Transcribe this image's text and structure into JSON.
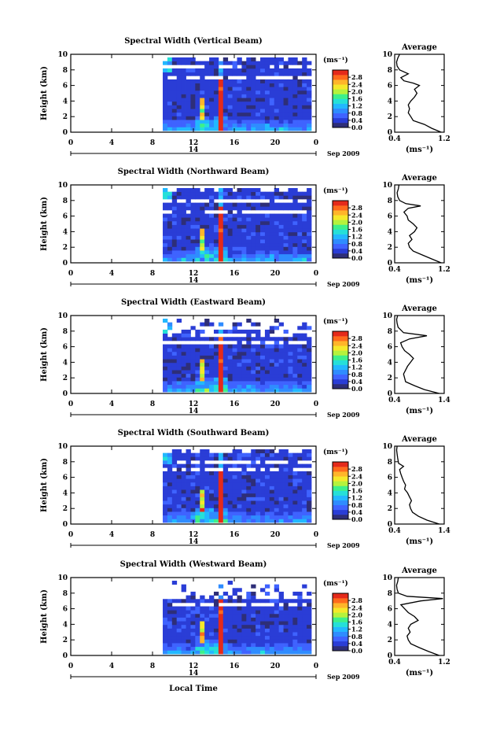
{
  "figure": {
    "xlabel": "Local Time",
    "date_label": "Sep 2009",
    "day_label": "14"
  },
  "colors": {
    "scale": [
      "#2e2e78",
      "#2a3dd6",
      "#3f63ff",
      "#2f8cff",
      "#22b8ff",
      "#25e0d8",
      "#3ef08a",
      "#b5f23c",
      "#f5e82a",
      "#ffb52a",
      "#ff6a1c",
      "#e52a1a"
    ],
    "missing": "#ffffff",
    "profile_line": "#000000"
  },
  "chart_data": [
    {
      "type": "heatmap",
      "title": "Spectral Width (Vertical Beam)",
      "ylabel": "Height (km)",
      "xlim": [
        0,
        24
      ],
      "ylim": [
        0,
        10
      ],
      "xticks": [
        "0",
        "4",
        "8",
        "12",
        "16",
        "20",
        "0"
      ],
      "yticks": [
        "0",
        "2",
        "4",
        "6",
        "8",
        "10"
      ],
      "colorbar": {
        "unit": "(ms⁻¹)",
        "ticks": [
          "0.0",
          "0.4",
          "0.8",
          "1.2",
          "1.6",
          "2.0",
          "2.4",
          "2.8"
        ],
        "range": [
          0,
          3.2
        ]
      },
      "data_start_hour": 9.0,
      "gaps": [
        [
          8.0,
          8.6
        ],
        [
          6.8,
          7.3
        ]
      ],
      "profile": {
        "title": "Average",
        "xlabel": "(ms⁻¹)",
        "xticks": [
          "0.4",
          "1.2"
        ],
        "xlim": [
          0.4,
          1.2
        ],
        "ylim": [
          0,
          10
        ],
        "yticks": [
          "0",
          "2",
          "4",
          "6",
          "8",
          "10"
        ],
        "height": [
          0,
          0.5,
          1,
          1.5,
          2,
          2.5,
          3,
          3.5,
          4,
          4.5,
          5,
          5.5,
          6,
          6.3,
          6.6,
          7,
          7.5,
          8,
          8.5,
          9,
          9.5,
          10
        ],
        "width": [
          1.15,
          1.0,
          0.88,
          0.7,
          0.66,
          0.62,
          0.64,
          0.62,
          0.66,
          0.72,
          0.76,
          0.72,
          0.8,
          0.7,
          0.55,
          0.5,
          0.62,
          0.48,
          0.44,
          0.43,
          0.45,
          0.48
        ]
      }
    },
    {
      "type": "heatmap",
      "title": "Spectral Width (Northward Beam)",
      "ylabel": "Height (km)",
      "xlim": [
        0,
        24
      ],
      "ylim": [
        0,
        10
      ],
      "xticks": [
        "0",
        "4",
        "8",
        "12",
        "16",
        "20",
        "0"
      ],
      "yticks": [
        "0",
        "2",
        "4",
        "6",
        "8",
        "10"
      ],
      "colorbar": {
        "unit": "(ms⁻¹)",
        "ticks": [
          "0.0",
          "0.4",
          "0.8",
          "1.2",
          "1.6",
          "2.0",
          "2.4",
          "2.8"
        ],
        "range": [
          0,
          3.2
        ]
      },
      "data_start_hour": 9.0,
      "gaps": [
        [
          7.6,
          8.2
        ],
        [
          6.3,
          6.9
        ]
      ],
      "profile": {
        "title": "Average",
        "xlabel": "(ms⁻¹)",
        "xticks": [
          "0.4",
          "1.2"
        ],
        "xlim": [
          0.4,
          1.2
        ],
        "ylim": [
          0,
          10
        ],
        "yticks": [
          "0",
          "2",
          "4",
          "6",
          "8",
          "10"
        ],
        "height": [
          0,
          0.5,
          1,
          1.5,
          2,
          2.5,
          3,
          3.5,
          4,
          4.5,
          5,
          5.5,
          6,
          6.5,
          7,
          7.3,
          7.6,
          8,
          8.5,
          9,
          9.5,
          10
        ],
        "width": [
          1.15,
          1.0,
          0.85,
          0.7,
          0.64,
          0.62,
          0.68,
          0.64,
          0.72,
          0.76,
          0.7,
          0.62,
          0.6,
          0.55,
          0.62,
          0.82,
          0.58,
          0.48,
          0.45,
          0.44,
          0.46,
          0.47
        ]
      }
    },
    {
      "type": "heatmap",
      "title": "Spectral Width (Eastward Beam)",
      "ylabel": "Height (km)",
      "xlim": [
        0,
        24
      ],
      "ylim": [
        0,
        10
      ],
      "xticks": [
        "0",
        "4",
        "8",
        "12",
        "16",
        "20",
        "0"
      ],
      "yticks": [
        "0",
        "2",
        "4",
        "6",
        "8",
        "10"
      ],
      "colorbar": {
        "unit": "(ms⁻¹)",
        "ticks": [
          "0.0",
          "0.4",
          "0.8",
          "1.2",
          "1.6",
          "2.0",
          "2.4",
          "2.8"
        ],
        "range": [
          0,
          3.2
        ]
      },
      "data_start_hour": 9.0,
      "gaps": [
        [
          7.0,
          10.0
        ],
        [
          6.4,
          6.7
        ]
      ],
      "profile": {
        "title": "Average",
        "xlabel": "(ms⁻¹)",
        "xticks": [
          "0.4",
          "1.4"
        ],
        "xlim": [
          0.4,
          1.4
        ],
        "ylim": [
          0,
          10
        ],
        "yticks": [
          "0",
          "2",
          "4",
          "6",
          "8",
          "10"
        ],
        "height": [
          0,
          0.5,
          1,
          1.5,
          2,
          2.5,
          3,
          3.5,
          4,
          4.5,
          5,
          5.5,
          6,
          6.5,
          7,
          7.4,
          7.8,
          8.5,
          9,
          9.5,
          10
        ],
        "width": [
          1.3,
          1.0,
          0.8,
          0.62,
          0.6,
          0.58,
          0.62,
          0.66,
          0.72,
          0.78,
          0.7,
          0.6,
          0.55,
          0.52,
          0.7,
          1.05,
          0.58,
          0.47,
          0.45,
          0.44,
          0.46
        ]
      }
    },
    {
      "type": "heatmap",
      "title": "Spectral Width (Southward Beam)",
      "ylabel": "Height (km)",
      "xlim": [
        0,
        24
      ],
      "ylim": [
        0,
        10
      ],
      "xticks": [
        "0",
        "4",
        "8",
        "12",
        "16",
        "20",
        "0"
      ],
      "yticks": [
        "0",
        "2",
        "4",
        "6",
        "8",
        "10"
      ],
      "colorbar": {
        "unit": "(ms⁻¹)",
        "ticks": [
          "0.0",
          "0.4",
          "0.8",
          "1.2",
          "1.6",
          "2.0",
          "2.4",
          "2.8"
        ],
        "range": [
          0,
          3.2
        ]
      },
      "data_start_hour": 9.0,
      "gaps": [
        [
          7.6,
          8.3
        ],
        [
          6.5,
          7.0
        ]
      ],
      "profile": {
        "title": "Average",
        "xlabel": "(ms⁻¹)",
        "xticks": [
          "0.4",
          "1.4"
        ],
        "xlim": [
          0.4,
          1.4
        ],
        "ylim": [
          0,
          10
        ],
        "yticks": [
          "0",
          "2",
          "4",
          "6",
          "8",
          "10"
        ],
        "height": [
          0,
          0.5,
          1,
          1.5,
          2,
          2.5,
          3,
          3.5,
          4,
          4.5,
          5,
          5.5,
          6,
          6.5,
          7,
          7.4,
          7.8,
          8.5,
          9,
          9.5,
          10
        ],
        "width": [
          1.3,
          1.05,
          0.88,
          0.76,
          0.72,
          0.7,
          0.74,
          0.7,
          0.66,
          0.6,
          0.62,
          0.58,
          0.55,
          0.52,
          0.5,
          0.58,
          0.48,
          0.46,
          0.45,
          0.44,
          0.45
        ]
      }
    },
    {
      "type": "heatmap",
      "title": "Spectral Width (Westward Beam)",
      "ylabel": "Height (km)",
      "xlim": [
        0,
        24
      ],
      "ylim": [
        0,
        10
      ],
      "xticks": [
        "0",
        "4",
        "8",
        "12",
        "16",
        "20",
        "0"
      ],
      "yticks": [
        "0",
        "2",
        "4",
        "6",
        "8",
        "10"
      ],
      "colorbar": {
        "unit": "(ms⁻¹)",
        "ticks": [
          "0.0",
          "0.4",
          "0.8",
          "1.2",
          "1.6",
          "2.0",
          "2.4",
          "2.8"
        ],
        "range": [
          0,
          3.2
        ]
      },
      "data_start_hour": 9.0,
      "gaps": [
        [
          7.3,
          10.0
        ],
        [
          6.3,
          6.6
        ]
      ],
      "profile": {
        "title": "Average",
        "xlabel": "(ms⁻¹)",
        "xticks": [
          "0.4",
          "1.2"
        ],
        "xlim": [
          0.4,
          1.2
        ],
        "ylim": [
          0,
          10
        ],
        "yticks": [
          "0",
          "2",
          "4",
          "6",
          "8",
          "10"
        ],
        "height": [
          0,
          0.5,
          1,
          1.5,
          2,
          2.5,
          3,
          3.5,
          4,
          4.5,
          5,
          5.5,
          6,
          6.5,
          7,
          7.3,
          7.6,
          8,
          8.5,
          9,
          9.5,
          10
        ],
        "width": [
          1.12,
          0.95,
          0.8,
          0.66,
          0.62,
          0.6,
          0.65,
          0.62,
          0.66,
          0.78,
          0.72,
          0.62,
          0.56,
          0.5,
          0.82,
          1.18,
          0.6,
          0.46,
          0.44,
          0.43,
          0.45,
          0.46
        ]
      }
    }
  ]
}
